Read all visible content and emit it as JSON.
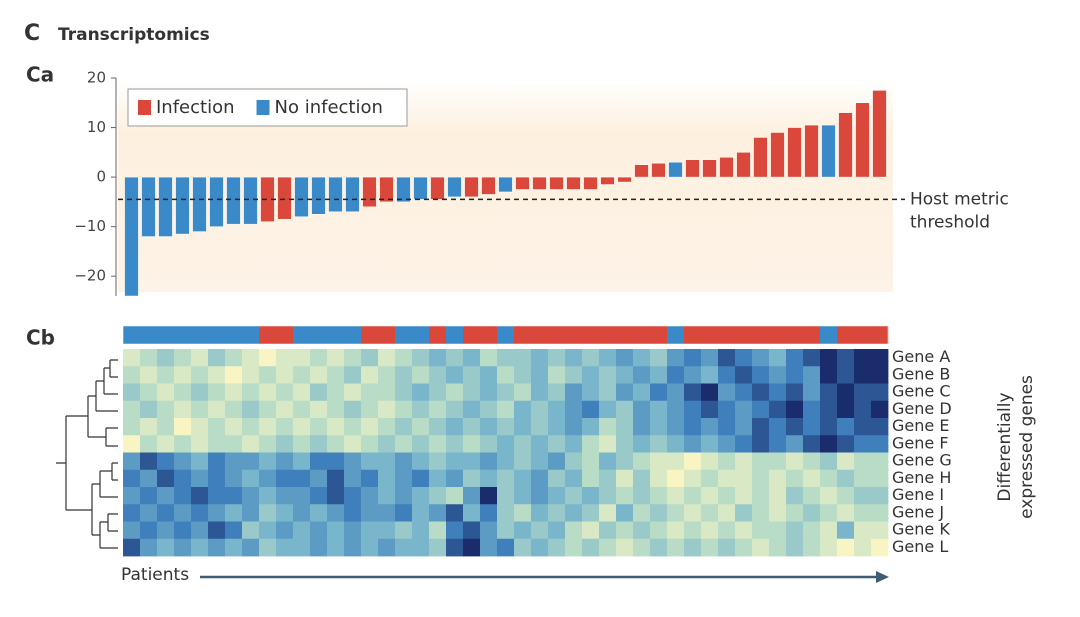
{
  "figure": {
    "label": "C",
    "title": "Transcriptomics"
  },
  "chart_data": [
    {
      "type": "bar",
      "panel": "Ca",
      "ylim": [
        -24,
        20
      ],
      "yticks": [
        {
          "value": -20,
          "label": "−20"
        },
        {
          "value": -10,
          "label": "−10"
        },
        0,
        10,
        20
      ],
      "legend": "upper left",
      "series": [
        {
          "name": "Infection",
          "color": "#d9483b",
          "values": [
            null,
            null,
            null,
            null,
            null,
            null,
            null,
            null,
            -9,
            -8.5,
            null,
            null,
            null,
            null,
            -6,
            -5,
            null,
            null,
            -4.5,
            null,
            -4,
            -3.5,
            null,
            -2.5,
            -2.5,
            -2.5,
            -2.5,
            -2.5,
            -1.5,
            -1,
            2.5,
            2.8,
            null,
            3.5,
            3.5,
            4,
            5,
            8,
            9,
            10,
            10.5,
            null,
            13,
            15,
            17.5
          ]
        },
        {
          "name": "No infection",
          "color": "#3a8ac9",
          "values": [
            -24,
            -12,
            -12,
            -11.5,
            -11,
            -10,
            -9.5,
            -9.5,
            null,
            null,
            -8,
            -7.5,
            -7,
            -7,
            null,
            null,
            -5,
            -4.5,
            null,
            -4,
            null,
            null,
            -3,
            null,
            null,
            null,
            null,
            null,
            null,
            null,
            null,
            null,
            3,
            null,
            null,
            null,
            null,
            null,
            null,
            null,
            null,
            10.5,
            null,
            null,
            null
          ]
        }
      ],
      "threshold": {
        "value": -4.5,
        "label_lines": [
          "Host metric",
          "threshold"
        ]
      }
    },
    {
      "type": "heatmap",
      "panel": "Cb",
      "rows": [
        "Gene A",
        "Gene B",
        "Gene C",
        "Gene D",
        "Gene E",
        "Gene F",
        "Gene G",
        "Gene H",
        "Gene I",
        "Gene J",
        "Gene K",
        "Gene L"
      ],
      "x_label": "Patients",
      "y_label_lines": [
        "Differentially",
        "expressed genes"
      ],
      "zlim": [
        1,
        9
      ],
      "colorscale": [
        "#f8f4c4",
        "#b9dcc6",
        "#79b6cc",
        "#3f7fbc",
        "#1b2c6c"
      ],
      "values": [
        [
          2,
          3,
          4,
          3,
          2,
          4,
          3,
          2,
          1,
          2,
          2,
          3,
          2,
          3,
          4,
          2,
          3,
          4,
          5,
          4,
          5,
          3,
          4,
          4,
          5,
          4,
          5,
          4,
          5,
          6,
          5,
          4,
          6,
          7,
          6,
          8,
          7,
          6,
          5,
          7,
          8,
          9,
          8,
          9,
          9
        ],
        [
          3,
          2,
          3,
          2,
          3,
          2,
          1,
          2,
          3,
          2,
          3,
          2,
          3,
          4,
          2,
          3,
          4,
          3,
          4,
          5,
          4,
          5,
          3,
          4,
          5,
          3,
          4,
          5,
          4,
          5,
          6,
          5,
          7,
          6,
          5,
          7,
          8,
          7,
          6,
          7,
          6,
          9,
          8,
          9,
          9
        ],
        [
          4,
          3,
          2,
          3,
          4,
          3,
          2,
          3,
          2,
          3,
          2,
          4,
          3,
          2,
          3,
          3,
          4,
          5,
          4,
          3,
          4,
          5,
          4,
          3,
          5,
          4,
          6,
          5,
          4,
          6,
          5,
          7,
          6,
          8,
          9,
          6,
          7,
          8,
          7,
          8,
          6,
          8,
          9,
          8,
          8
        ],
        [
          3,
          4,
          3,
          2,
          3,
          2,
          3,
          4,
          3,
          2,
          3,
          2,
          3,
          4,
          3,
          2,
          3,
          4,
          3,
          4,
          5,
          4,
          3,
          5,
          4,
          5,
          6,
          7,
          5,
          4,
          6,
          5,
          6,
          7,
          8,
          7,
          6,
          7,
          8,
          9,
          7,
          8,
          9,
          8,
          9
        ],
        [
          3,
          2,
          3,
          1,
          2,
          3,
          2,
          3,
          2,
          3,
          2,
          3,
          2,
          3,
          2,
          3,
          4,
          3,
          4,
          5,
          4,
          5,
          4,
          5,
          4,
          5,
          6,
          5,
          3,
          4,
          6,
          5,
          6,
          7,
          6,
          7,
          6,
          8,
          7,
          8,
          7,
          8,
          7,
          8,
          8
        ],
        [
          1,
          3,
          2,
          3,
          2,
          3,
          3,
          2,
          3,
          4,
          3,
          4,
          3,
          2,
          3,
          4,
          3,
          4,
          3,
          4,
          3,
          4,
          5,
          4,
          5,
          4,
          5,
          3,
          2,
          4,
          5,
          4,
          5,
          6,
          5,
          6,
          7,
          8,
          7,
          6,
          8,
          9,
          8,
          7,
          7
        ],
        [
          6,
          8,
          7,
          6,
          5,
          7,
          6,
          6,
          5,
          6,
          5,
          7,
          7,
          6,
          5,
          5,
          6,
          5,
          4,
          5,
          5,
          6,
          5,
          4,
          5,
          6,
          4,
          3,
          5,
          4,
          3,
          2,
          2,
          1,
          2,
          3,
          2,
          3,
          3,
          2,
          3,
          4,
          2,
          3,
          3
        ],
        [
          7,
          6,
          8,
          7,
          6,
          7,
          6,
          5,
          6,
          7,
          7,
          6,
          8,
          6,
          7,
          5,
          6,
          7,
          5,
          6,
          4,
          5,
          4,
          5,
          6,
          4,
          5,
          3,
          4,
          2,
          4,
          2,
          1,
          2,
          3,
          2,
          2,
          3,
          2,
          3,
          2,
          3,
          4,
          3,
          3
        ],
        [
          6,
          7,
          6,
          7,
          8,
          7,
          7,
          6,
          5,
          6,
          6,
          7,
          8,
          7,
          6,
          5,
          6,
          5,
          4,
          3,
          6,
          9,
          4,
          5,
          6,
          5,
          4,
          5,
          4,
          3,
          4,
          3,
          2,
          3,
          2,
          3,
          2,
          3,
          2,
          4,
          3,
          2,
          3,
          4,
          4
        ],
        [
          7,
          6,
          7,
          6,
          7,
          6,
          5,
          6,
          4,
          5,
          6,
          5,
          6,
          7,
          6,
          6,
          7,
          5,
          6,
          8,
          5,
          7,
          4,
          3,
          5,
          4,
          5,
          4,
          2,
          5,
          3,
          4,
          3,
          2,
          3,
          2,
          4,
          3,
          2,
          3,
          4,
          3,
          2,
          3,
          3
        ],
        [
          6,
          7,
          6,
          7,
          6,
          8,
          7,
          4,
          5,
          6,
          5,
          6,
          5,
          6,
          5,
          5,
          4,
          5,
          3,
          7,
          8,
          6,
          4,
          5,
          4,
          5,
          3,
          2,
          4,
          3,
          4,
          3,
          2,
          3,
          2,
          3,
          2,
          3,
          3,
          4,
          3,
          2,
          5,
          2,
          2
        ],
        [
          8,
          6,
          5,
          6,
          5,
          6,
          5,
          6,
          4,
          5,
          5,
          6,
          5,
          6,
          5,
          6,
          5,
          5,
          4,
          8,
          9,
          6,
          7,
          4,
          5,
          4,
          3,
          4,
          3,
          2,
          3,
          4,
          3,
          4,
          3,
          4,
          3,
          2,
          3,
          4,
          3,
          2,
          1,
          2,
          1
        ]
      ]
    }
  ]
}
